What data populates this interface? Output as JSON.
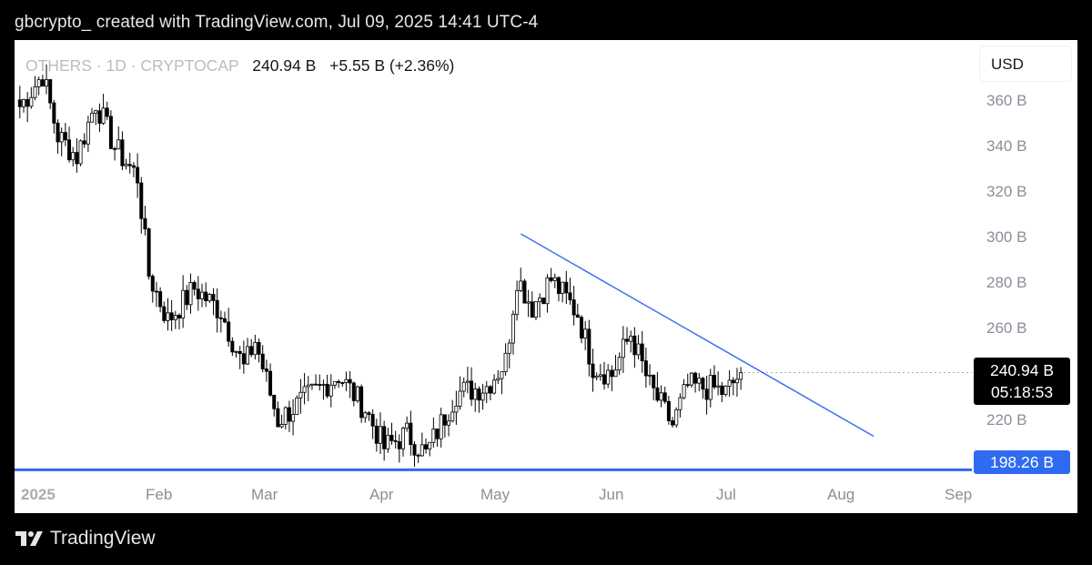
{
  "caption": "gbcrypto_ created with TradingView.com, Jul 09, 2025 14:41 UTC-4",
  "legend": {
    "symbol": "OTHERS · 1D · CRYPTOCAP",
    "price": "240.94 B",
    "change": "+5.55 B (+2.36%)"
  },
  "currency": "USD",
  "price_tag": {
    "price": "240.94 B",
    "countdown": "05:18:53"
  },
  "level_tag": "198.26 B",
  "brand": "TradingView",
  "colors": {
    "candle": "#000000",
    "trendline": "#3b6ff2",
    "support": "#2f6bf0",
    "background": "#ffffff"
  },
  "chart_data": {
    "type": "candlestick",
    "y_axis": {
      "ticks": [
        "360 B",
        "340 B",
        "320 B",
        "300 B",
        "280 B",
        "260 B",
        "220 B"
      ],
      "range": [
        196,
        382
      ],
      "unit": "B USD"
    },
    "x_axis": {
      "ticks": [
        "2025",
        "Feb",
        "Mar",
        "Apr",
        "May",
        "Jun",
        "Jul",
        "Aug",
        "Sep"
      ]
    },
    "last_close": 240.94,
    "support_level": 198.26,
    "trendline": {
      "from": {
        "date": "2025-05-12",
        "value": 302
      },
      "to": {
        "date": "2025-08-13",
        "value": 213
      }
    },
    "close_path": [
      {
        "date": "2024-12-31",
        "close": 358
      },
      {
        "date": "2025-01-06",
        "close": 372
      },
      {
        "date": "2025-01-10",
        "close": 345
      },
      {
        "date": "2025-01-15",
        "close": 336
      },
      {
        "date": "2025-01-20",
        "close": 360
      },
      {
        "date": "2025-01-25",
        "close": 340
      },
      {
        "date": "2025-01-31",
        "close": 327
      },
      {
        "date": "2025-02-03",
        "close": 284
      },
      {
        "date": "2025-02-08",
        "close": 264
      },
      {
        "date": "2025-02-15",
        "close": 278
      },
      {
        "date": "2025-02-22",
        "close": 268
      },
      {
        "date": "2025-02-28",
        "close": 243
      },
      {
        "date": "2025-03-03",
        "close": 255
      },
      {
        "date": "2025-03-09",
        "close": 220
      },
      {
        "date": "2025-03-15",
        "close": 228
      },
      {
        "date": "2025-03-25",
        "close": 240
      },
      {
        "date": "2025-04-01",
        "close": 225
      },
      {
        "date": "2025-04-06",
        "close": 208
      },
      {
        "date": "2025-04-12",
        "close": 214
      },
      {
        "date": "2025-04-17",
        "close": 205
      },
      {
        "date": "2025-04-25",
        "close": 232
      },
      {
        "date": "2025-05-03",
        "close": 235
      },
      {
        "date": "2025-05-08",
        "close": 246
      },
      {
        "date": "2025-05-11",
        "close": 283
      },
      {
        "date": "2025-05-15",
        "close": 270
      },
      {
        "date": "2025-05-20",
        "close": 282
      },
      {
        "date": "2025-05-27",
        "close": 267
      },
      {
        "date": "2025-05-31",
        "close": 244
      },
      {
        "date": "2025-06-05",
        "close": 240
      },
      {
        "date": "2025-06-10",
        "close": 258
      },
      {
        "date": "2025-06-15",
        "close": 235
      },
      {
        "date": "2025-06-21",
        "close": 218
      },
      {
        "date": "2025-06-25",
        "close": 235
      },
      {
        "date": "2025-07-02",
        "close": 234
      },
      {
        "date": "2025-07-05",
        "close": 232
      },
      {
        "date": "2025-07-09",
        "close": 240.94
      }
    ]
  }
}
